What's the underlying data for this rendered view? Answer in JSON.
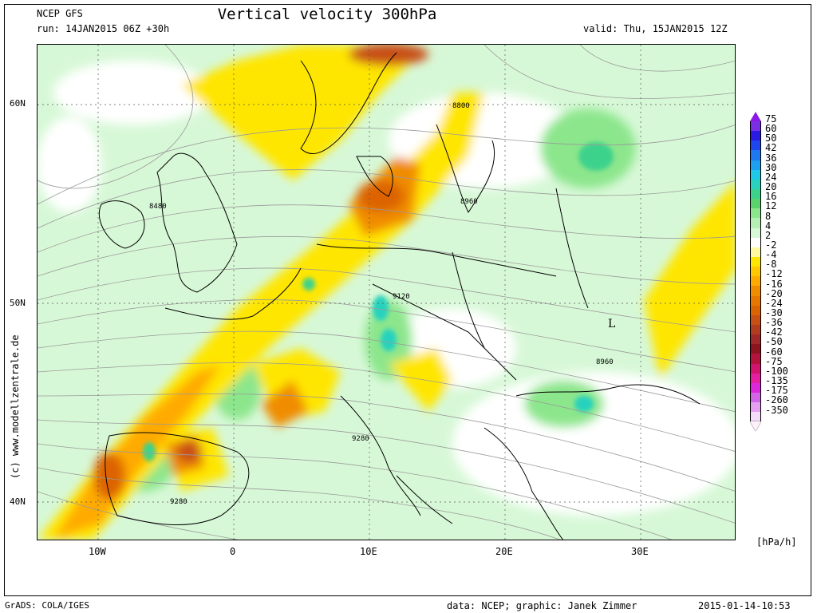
{
  "header": {
    "model": "NCEP GFS",
    "run": "run: 14JAN2015 06Z +30h",
    "title": "Vertical velocity 300hPa",
    "valid": "valid: Thu, 15JAN2015 12Z"
  },
  "axes": {
    "lat_labels": [
      "60N",
      "50N",
      "40N"
    ],
    "lon_labels": [
      "10W",
      "0",
      "10E",
      "20E",
      "30E"
    ]
  },
  "contour_labels": [
    "8800",
    "8960",
    "8480",
    "9120",
    "8960",
    "9280",
    "9280"
  ],
  "pressure_center": "L",
  "colorbar": {
    "unit": "[hPa/h]",
    "levels": [
      "75",
      "60",
      "50",
      "42",
      "36",
      "30",
      "24",
      "20",
      "16",
      "12",
      "8",
      "4",
      "2",
      "-2",
      "-4",
      "-8",
      "-12",
      "-16",
      "-20",
      "-24",
      "-30",
      "-36",
      "-42",
      "-50",
      "-60",
      "-75",
      "-100",
      "-135",
      "-175",
      "-260",
      "-350"
    ],
    "colors": [
      "#7a2ee6",
      "#2a1ae6",
      "#1e46f0",
      "#1e78f0",
      "#1ea0f0",
      "#1ec8e6",
      "#28d2be",
      "#3cd28c",
      "#5ad26e",
      "#8ce68c",
      "#b4f0b4",
      "#d7f8d7",
      "#ffffff",
      "#fffaa0",
      "#ffe600",
      "#ffc800",
      "#ffaa00",
      "#f08c00",
      "#e67800",
      "#dc6400",
      "#c85014",
      "#b43c1e",
      "#a02828",
      "#8c141e",
      "#b4143c",
      "#d2146e",
      "#e61ea0",
      "#dc28dc",
      "#d264e6",
      "#e6a0f0",
      "#f5dcf8"
    ],
    "top_arrow_color": "#8b1ae6",
    "bottom_arrow_color": "#fff0fa"
  },
  "side_credit": "(c) www.modellzentrale.de",
  "footer": {
    "left": "GrADS: COLA/IGES",
    "data_credit": "data: NCEP; graphic: Janek Zimmer",
    "timestamp": "2015-01-14-10:53"
  }
}
